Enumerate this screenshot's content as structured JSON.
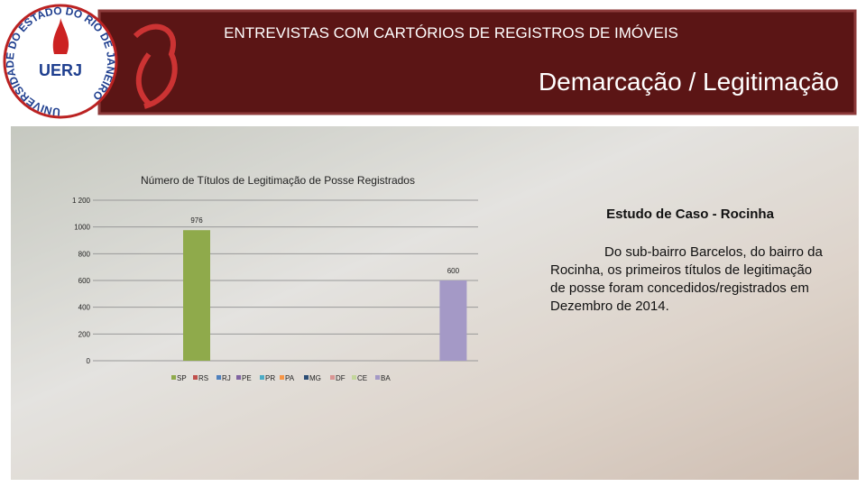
{
  "header": {
    "title": "ENTREVISTAS COM CARTÓRIOS DE REGISTROS DE IMÓVEIS",
    "subtitle": "Demarcação / Legitimação",
    "logo": {
      "acronym": "UERJ",
      "ring": "UNIVERSIDADE DO ESTADO DO RIO DE JANEIRO"
    }
  },
  "chart_data": {
    "type": "bar",
    "title": "Número de Títulos de Legitimação de Posse Registrados",
    "series": [
      {
        "name": "SP",
        "color": "#8faa4b",
        "values": [
          976
        ]
      },
      {
        "name": "RS",
        "color": "#c0504d",
        "values": [
          null
        ]
      },
      {
        "name": "RJ",
        "color": "#4f81bd",
        "values": [
          null
        ]
      },
      {
        "name": "PE",
        "color": "#8064a2",
        "values": [
          null
        ]
      },
      {
        "name": "PR",
        "color": "#4bacc6",
        "values": [
          null
        ]
      },
      {
        "name": "PA",
        "color": "#f79646",
        "values": [
          null
        ]
      },
      {
        "name": "MG",
        "color": "#2c4d75",
        "values": [
          null
        ]
      },
      {
        "name": "DF",
        "color": "#d99694",
        "values": [
          null
        ]
      },
      {
        "name": "CE",
        "color": "#c3d69b",
        "values": [
          null
        ]
      },
      {
        "name": "BA",
        "color": "#a499c6",
        "values": [
          600
        ]
      }
    ],
    "ylim": [
      0,
      1200
    ],
    "yticks": [
      0,
      200,
      400,
      600,
      800,
      1000,
      {
        "value": 1200,
        "label": "1 200"
      }
    ],
    "grid": true
  },
  "sidebar": {
    "heading": "Estudo de Caso - Rocinha",
    "text": "Do sub-bairro Barcelos, do bairro da Rocinha, os primeiros títulos de legitimação de posse foram concedidos/registrados em Dezembro de 2014."
  }
}
